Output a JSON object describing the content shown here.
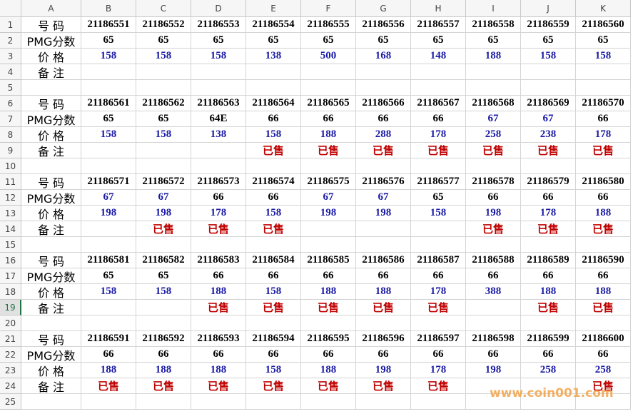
{
  "columns": [
    "A",
    "B",
    "C",
    "D",
    "E",
    "F",
    "G",
    "H",
    "I",
    "J",
    "K"
  ],
  "row_numbers": [
    1,
    2,
    3,
    4,
    5,
    6,
    7,
    8,
    9,
    10,
    11,
    12,
    13,
    14,
    15,
    16,
    17,
    18,
    19,
    20,
    21,
    22,
    23,
    24,
    25
  ],
  "selected_row": 19,
  "row_labels": [
    "号 码",
    "PMG分数",
    "价 格",
    "备 注"
  ],
  "colors": {
    "id": "#000000",
    "price": "#1a1aa6",
    "sold": "#c00000",
    "selected": "#217346"
  },
  "blocks": [
    {
      "ids": [
        21186551,
        21186552,
        21186553,
        21186554,
        21186555,
        21186556,
        21186557,
        21186558,
        21186559,
        21186560
      ],
      "scores": [
        65,
        65,
        65,
        65,
        65,
        65,
        65,
        65,
        65,
        65
      ],
      "score_colors": [
        "#000000",
        "#000000",
        "#000000",
        "#000000",
        "#000000",
        "#000000",
        "#000000",
        "#000000",
        "#000000",
        "#000000"
      ],
      "prices": [
        158,
        158,
        158,
        138,
        500,
        168,
        148,
        188,
        158,
        158
      ],
      "remarks": [
        null,
        null,
        null,
        null,
        null,
        null,
        null,
        null,
        null,
        null
      ]
    },
    {
      "ids": [
        21186561,
        21186562,
        21186563,
        21186564,
        21186565,
        21186566,
        21186567,
        21186568,
        21186569,
        21186570
      ],
      "scores": [
        65,
        65,
        "64E",
        66,
        66,
        66,
        66,
        67,
        67,
        66
      ],
      "score_colors": [
        "#000000",
        "#000000",
        "#000000",
        "#000000",
        "#000000",
        "#000000",
        "#000000",
        "#1a1aa6",
        "#1a1aa6",
        "#000000"
      ],
      "prices": [
        158,
        158,
        138,
        158,
        188,
        288,
        178,
        258,
        238,
        178
      ],
      "remarks": [
        null,
        null,
        null,
        "已售",
        "已售",
        "已售",
        "已售",
        "已售",
        "已售",
        "已售"
      ]
    },
    {
      "ids": [
        21186571,
        21186572,
        21186573,
        21186574,
        21186575,
        21186576,
        21186577,
        21186578,
        21186579,
        21186580
      ],
      "scores": [
        67,
        67,
        66,
        66,
        67,
        67,
        65,
        66,
        66,
        66
      ],
      "score_colors": [
        "#1a1aa6",
        "#1a1aa6",
        "#000000",
        "#000000",
        "#1a1aa6",
        "#1a1aa6",
        "#000000",
        "#000000",
        "#000000",
        "#000000"
      ],
      "prices": [
        198,
        198,
        178,
        158,
        198,
        198,
        158,
        198,
        178,
        188
      ],
      "remarks": [
        null,
        "已售",
        "已售",
        "已售",
        null,
        null,
        null,
        "已售",
        "已售",
        "已售"
      ]
    },
    {
      "ids": [
        21186581,
        21186582,
        21186583,
        21186584,
        21186585,
        21186586,
        21186587,
        21186588,
        21186589,
        21186590
      ],
      "scores": [
        65,
        65,
        66,
        66,
        66,
        66,
        66,
        66,
        66,
        66
      ],
      "score_colors": [
        "#000000",
        "#000000",
        "#000000",
        "#000000",
        "#000000",
        "#000000",
        "#000000",
        "#000000",
        "#000000",
        "#000000"
      ],
      "prices": [
        158,
        158,
        188,
        158,
        188,
        188,
        178,
        388,
        188,
        188
      ],
      "remarks": [
        null,
        null,
        "已售",
        "已售",
        "已售",
        "已售",
        "已售",
        null,
        "已售",
        "已售"
      ]
    },
    {
      "ids": [
        21186591,
        21186592,
        21186593,
        21186594,
        21186595,
        21186596,
        21186597,
        21186598,
        21186599,
        21186600
      ],
      "scores": [
        66,
        66,
        66,
        66,
        66,
        66,
        66,
        66,
        66,
        66
      ],
      "score_colors": [
        "#000000",
        "#000000",
        "#000000",
        "#000000",
        "#000000",
        "#000000",
        "#000000",
        "#000000",
        "#000000",
        "#000000"
      ],
      "prices": [
        188,
        188,
        188,
        158,
        188,
        198,
        178,
        198,
        258,
        258
      ],
      "remarks": [
        "已售",
        "已售",
        "已售",
        "已售",
        "已售",
        "已售",
        "已售",
        null,
        null,
        "已售"
      ]
    }
  ],
  "watermark": "www.coin001.com"
}
